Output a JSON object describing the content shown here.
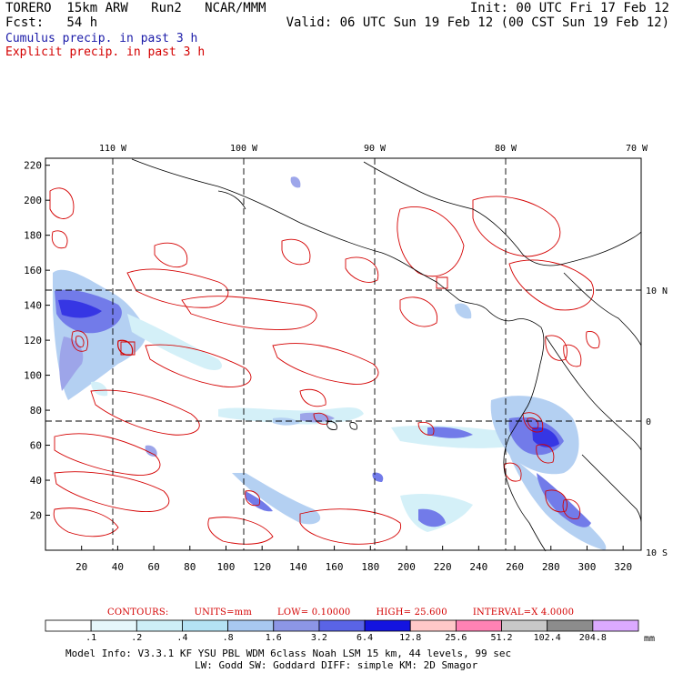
{
  "header": {
    "line1_left": "TORERO  15km ARW   Run2   NCAR/MMM",
    "line2_left": "Fcst:   54 h",
    "line1_right": "Init: 00 UTC Fri 17 Feb 12",
    "line2_right": "Valid: 06 UTC Sun 19 Feb 12 (00 CST Sun 19 Feb 12)"
  },
  "legend": {
    "cumulus": "Cumulus precip. in past 3 h",
    "explicit": "Explicit precip. in past 3 h"
  },
  "colors": {
    "cumulus": "#1a1aa8",
    "explicit": "#d40000",
    "coast": "#000000",
    "grid": "#000000"
  },
  "map": {
    "longitude_labels": [
      "110 W",
      "100 W",
      "90 W",
      "80 W",
      "70 W"
    ],
    "latitude_labels": [
      "10 N",
      "0",
      "10 S"
    ],
    "x_ticks": [
      "20",
      "40",
      "60",
      "80",
      "100",
      "120",
      "140",
      "160",
      "180",
      "200",
      "220",
      "240",
      "260",
      "280",
      "300",
      "320"
    ],
    "y_ticks": [
      "20",
      "40",
      "60",
      "80",
      "100",
      "120",
      "140",
      "160",
      "180",
      "200",
      "220"
    ],
    "x_range": [
      0,
      330
    ],
    "y_range": [
      0,
      224
    ]
  },
  "contours_info": {
    "label": "CONTOURS:",
    "units": "UNITS=mm",
    "low": "LOW= 0.10000",
    "high": "HIGH=  25.600",
    "interval": "INTERVAL=X  4.0000"
  },
  "colorbar": {
    "units": "mm",
    "labels": [
      ".1",
      ".2",
      ".4",
      ".8",
      "1.6",
      "3.2",
      "6.4",
      "12.8",
      "25.6",
      "51.2",
      "102.4",
      "204.8"
    ],
    "colors": [
      "#ffffff",
      "#e6f7fb",
      "#cdeef7",
      "#b4e2f4",
      "#a8c8f0",
      "#8c96e6",
      "#5a64e6",
      "#1414e0",
      "#ffc8c8",
      "#ff82b4",
      "#c8c8c8",
      "#8c8c8c",
      "#dcaaff"
    ]
  },
  "model_info": {
    "line1": "Model Info: V3.3.1    KF     YSU PBL   WDM 6class  Noah LSM  15 km,   44 levels,   99 sec",
    "line2": "LW: Godd SW: Goddard DIFF: simple KM: 2D Smagor"
  }
}
